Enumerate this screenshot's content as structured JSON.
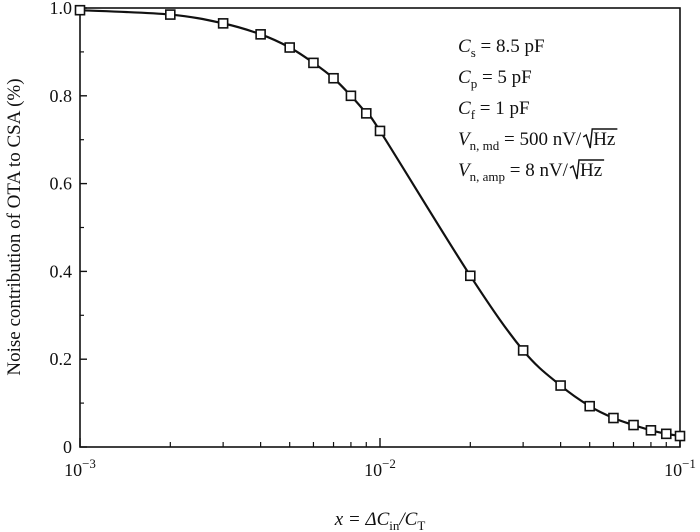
{
  "chart_data": {
    "type": "line",
    "x_scale": "log",
    "grid": false,
    "ylabel": "Noise contribution of OTA to CSA (%)",
    "xlabel": {
      "base": "x = ΔC",
      "sub1": "in",
      "mid": "/C",
      "sub2": "T"
    },
    "xlim": [
      0.001,
      0.1
    ],
    "ylim": [
      0,
      1.0
    ],
    "xticks": [
      {
        "value": 0.001,
        "base": "10",
        "exp": "−3"
      },
      {
        "value": 0.01,
        "base": "10",
        "exp": "−2"
      },
      {
        "value": 0.1,
        "base": "10",
        "exp": "−1"
      }
    ],
    "yticks": [
      {
        "value": 0,
        "label": "0"
      },
      {
        "value": 0.2,
        "label": "0.2"
      },
      {
        "value": 0.4,
        "label": "0.4"
      },
      {
        "value": 0.6,
        "label": "0.6"
      },
      {
        "value": 0.8,
        "label": "0.8"
      },
      {
        "value": 1.0,
        "label": "1.0"
      }
    ],
    "series": [
      {
        "marker": "open-square",
        "color": "#111111",
        "points": [
          [
            0.001,
            0.995
          ],
          [
            0.002,
            0.985
          ],
          [
            0.003,
            0.965
          ],
          [
            0.004,
            0.94
          ],
          [
            0.005,
            0.91
          ],
          [
            0.006,
            0.875
          ],
          [
            0.007,
            0.84
          ],
          [
            0.008,
            0.8
          ],
          [
            0.009,
            0.76
          ],
          [
            0.01,
            0.72
          ],
          [
            0.02,
            0.39
          ],
          [
            0.03,
            0.22
          ],
          [
            0.04,
            0.14
          ],
          [
            0.05,
            0.093
          ],
          [
            0.06,
            0.066
          ],
          [
            0.07,
            0.05
          ],
          [
            0.08,
            0.038
          ],
          [
            0.09,
            0.03
          ],
          [
            0.1,
            0.025
          ]
        ]
      }
    ],
    "annotations": [
      {
        "base": "C",
        "sub": "s",
        "rest": " = 8.5 pF",
        "sqrt": ""
      },
      {
        "base": "C",
        "sub": "p",
        "rest": " = 5 pF",
        "sqrt": ""
      },
      {
        "base": "C",
        "sub": "f",
        "rest": " = 1 pF",
        "sqrt": ""
      },
      {
        "base": "V",
        "sub": "n, md",
        "rest": " = 500 nV/",
        "sqrt": "Hz"
      },
      {
        "base": "V",
        "sub": "n, amp",
        "rest": " = 8 nV/",
        "sqrt": "Hz"
      }
    ]
  }
}
